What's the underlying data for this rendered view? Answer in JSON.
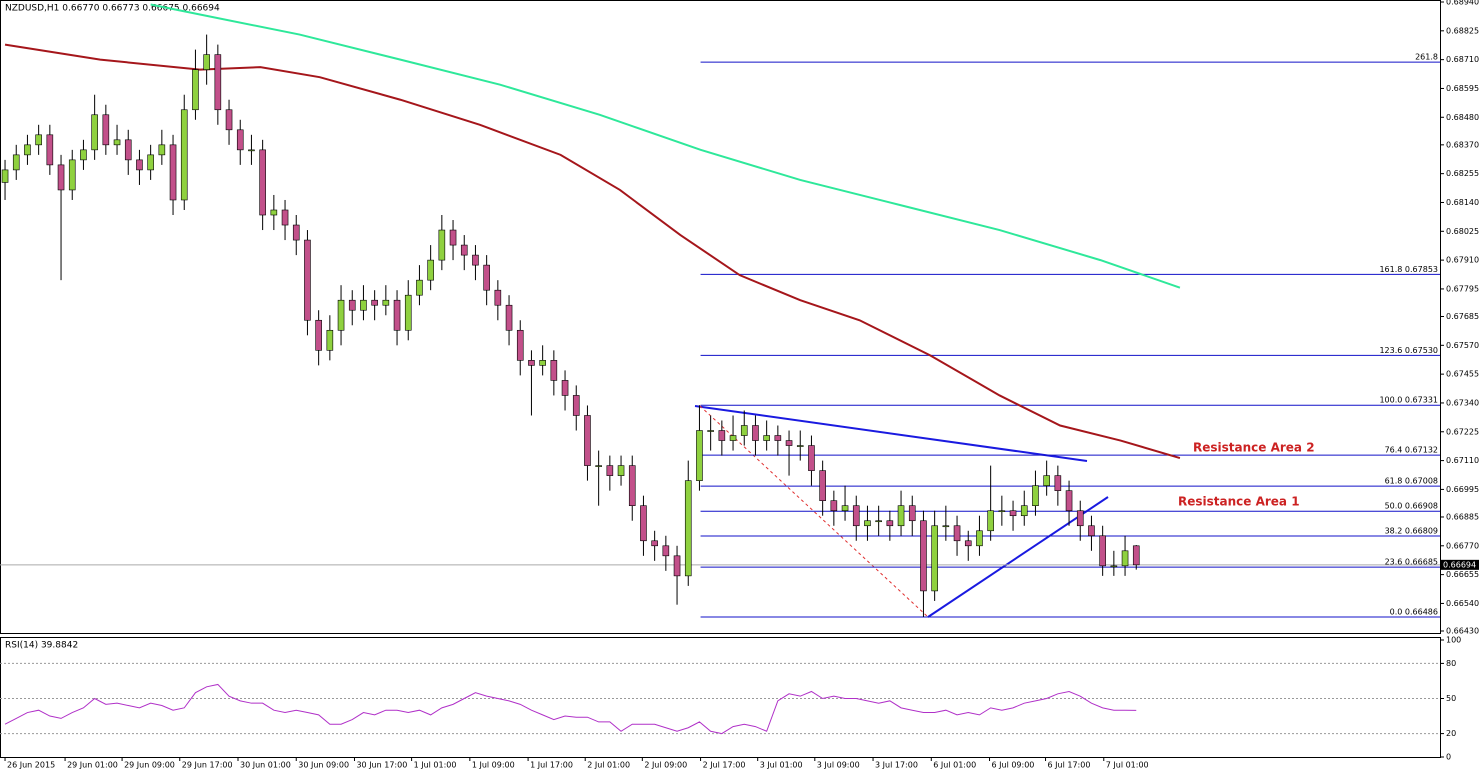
{
  "chart_data": {
    "type": "candlestick",
    "title": "NZDUSD,H1  0.66770 0.66773 0.66675 0.66694",
    "bull_color": "#8fd13f",
    "bear_color": "#c2508a",
    "xlim": [
      -0.45,
      128.12
    ],
    "ylim": [
      0.6643,
      0.6894
    ],
    "yticks": [
      {
        "value": 0.6894,
        "label": "0.68940"
      },
      {
        "value": 0.68825,
        "label": "0.68825"
      },
      {
        "value": 0.6871,
        "label": "0.68710"
      },
      {
        "value": 0.68595,
        "label": "0.68595"
      },
      {
        "value": 0.6848,
        "label": "0.68480"
      },
      {
        "value": 0.6837,
        "label": "0.68370"
      },
      0.68255,
      {
        "value": 0.6814,
        "label": "0.68140"
      },
      0.68025,
      {
        "value": 0.6791,
        "label": "0.67910"
      },
      0.67795,
      0.67685,
      {
        "value": 0.6757,
        "label": "0.67570"
      },
      0.67455,
      {
        "value": 0.6734,
        "label": "0.67340"
      },
      0.67225,
      {
        "value": 0.6711,
        "label": "0.67110"
      },
      0.66995,
      0.66885,
      {
        "value": 0.6677,
        "label": "0.66770"
      },
      0.66655,
      {
        "value": 0.6654,
        "label": "0.66540"
      },
      {
        "value": 0.6643,
        "label": "0.66430"
      }
    ],
    "xticks": [
      {
        "value": 0,
        "label": "26 Jun 2015"
      },
      {
        "value": 5.36,
        "label": "29 Jun 01:00"
      },
      {
        "value": 10.45,
        "label": "29 Jun 09:00"
      },
      {
        "value": 15.6,
        "label": "29 Jun 17:00"
      },
      {
        "value": 20.8,
        "label": "30 Jun 01:00"
      },
      {
        "value": 26.0,
        "label": "30 Jun 09:00"
      },
      {
        "value": 31.2,
        "label": "30 Jun 17:00"
      },
      {
        "value": 36.3,
        "label": "1 Jul 01:00"
      },
      {
        "value": 41.5,
        "label": "1 Jul 09:00"
      },
      {
        "value": 46.7,
        "label": "1 Jul 17:00"
      },
      {
        "value": 51.8,
        "label": "2 Jul 01:00"
      },
      {
        "value": 56.9,
        "label": "2 Jul 09:00"
      },
      {
        "value": 62.1,
        "label": "2 Jul 17:00"
      },
      {
        "value": 67.2,
        "label": "3 Jul 01:00"
      },
      {
        "value": 72.3,
        "label": "3 Jul 09:00"
      },
      {
        "value": 77.5,
        "label": "3 Jul 17:00"
      },
      {
        "value": 82.7,
        "label": "6 Jul 01:00"
      },
      {
        "value": 87.9,
        "label": "6 Jul 09:00"
      },
      {
        "value": 92.9,
        "label": "6 Jul 17:00"
      },
      {
        "value": 98.1,
        "label": "7 Jul 01:00"
      }
    ],
    "candles": [
      [
        0.6822,
        0.6831,
        0.6815,
        0.6827
      ],
      [
        0.6827,
        0.6837,
        0.6823,
        0.6833
      ],
      [
        0.6833,
        0.6841,
        0.6829,
        0.6837
      ],
      [
        0.6837,
        0.6845,
        0.6833,
        0.6841
      ],
      [
        0.6841,
        0.6845,
        0.6825,
        0.6829
      ],
      [
        0.6829,
        0.6833,
        0.6783,
        0.6819
      ],
      [
        0.6819,
        0.6835,
        0.6815,
        0.6831
      ],
      [
        0.6831,
        0.6839,
        0.6827,
        0.6835
      ],
      [
        0.6835,
        0.6857,
        0.6831,
        0.6849
      ],
      [
        0.6849,
        0.6853,
        0.6833,
        0.6837
      ],
      [
        0.6837,
        0.6845,
        0.6833,
        0.6839
      ],
      [
        0.6839,
        0.6843,
        0.6825,
        0.6831
      ],
      [
        0.6831,
        0.6835,
        0.6821,
        0.6827
      ],
      [
        0.6827,
        0.6837,
        0.6823,
        0.6833
      ],
      [
        0.6833,
        0.6843,
        0.6829,
        0.6837
      ],
      [
        0.6837,
        0.6841,
        0.6809,
        0.6815
      ],
      [
        0.6815,
        0.6857,
        0.6811,
        0.6851
      ],
      [
        0.6851,
        0.6875,
        0.6847,
        0.6867
      ],
      [
        0.6867,
        0.6881,
        0.6861,
        0.6873
      ],
      [
        0.6873,
        0.6877,
        0.6845,
        0.6851
      ],
      [
        0.6851,
        0.6855,
        0.6837,
        0.6843
      ],
      [
        0.6843,
        0.6847,
        0.6829,
        0.6835
      ],
      [
        0.6835,
        0.6841,
        0.6829,
        0.6835
      ],
      [
        0.6835,
        0.6839,
        0.6803,
        0.6809
      ],
      [
        0.6809,
        0.6817,
        0.6803,
        0.6811
      ],
      [
        0.6811,
        0.6815,
        0.6799,
        0.6805
      ],
      [
        0.6805,
        0.6809,
        0.6793,
        0.6799
      ],
      [
        0.6799,
        0.6803,
        0.6761,
        0.6767
      ],
      [
        0.6767,
        0.6771,
        0.6749,
        0.6755
      ],
      [
        0.6755,
        0.6769,
        0.6751,
        0.6763
      ],
      [
        0.6763,
        0.6781,
        0.6757,
        0.6775
      ],
      [
        0.6775,
        0.6779,
        0.6765,
        0.6771
      ],
      [
        0.6771,
        0.6781,
        0.6767,
        0.6775
      ],
      [
        0.6775,
        0.6779,
        0.6767,
        0.6773
      ],
      [
        0.6773,
        0.6781,
        0.6769,
        0.6775
      ],
      [
        0.6775,
        0.6779,
        0.6757,
        0.6763
      ],
      [
        0.6763,
        0.6783,
        0.6759,
        0.6777
      ],
      [
        0.6777,
        0.6789,
        0.6773,
        0.6783
      ],
      [
        0.6783,
        0.6797,
        0.6779,
        0.6791
      ],
      [
        0.6791,
        0.6809,
        0.6787,
        0.6803
      ],
      [
        0.6803,
        0.6807,
        0.6791,
        0.6797
      ],
      [
        0.6797,
        0.6801,
        0.6787,
        0.6793
      ],
      [
        0.6793,
        0.6797,
        0.6783,
        0.6789
      ],
      [
        0.6789,
        0.6793,
        0.6773,
        0.6779
      ],
      [
        0.6779,
        0.6783,
        0.6767,
        0.6773
      ],
      [
        0.6773,
        0.6777,
        0.6757,
        0.6763
      ],
      [
        0.6763,
        0.6767,
        0.6745,
        0.6751
      ],
      [
        0.6751,
        0.6755,
        0.6729,
        0.6749
      ],
      [
        0.6749,
        0.6757,
        0.6745,
        0.6751
      ],
      [
        0.6751,
        0.6755,
        0.6737,
        0.6743
      ],
      [
        0.6743,
        0.6747,
        0.6731,
        0.6737
      ],
      [
        0.6737,
        0.6741,
        0.6723,
        0.6729
      ],
      [
        0.6729,
        0.6733,
        0.6703,
        0.6709
      ],
      [
        0.6709,
        0.6715,
        0.6693,
        0.6709
      ],
      [
        0.6709,
        0.6713,
        0.6699,
        0.6705
      ],
      [
        0.6705,
        0.6713,
        0.6701,
        0.6709
      ],
      [
        0.6709,
        0.6713,
        0.6687,
        0.6693
      ],
      [
        0.6693,
        0.6697,
        0.6673,
        0.6679
      ],
      [
        0.6679,
        0.6683,
        0.6671,
        0.6677
      ],
      [
        0.6677,
        0.6681,
        0.6667,
        0.6673
      ],
      [
        0.6673,
        0.6677,
        0.66535,
        0.6665
      ],
      [
        0.6665,
        0.6711,
        0.6661,
        0.6703
      ],
      [
        0.6703,
        0.67331,
        0.6699,
        0.6723
      ],
      [
        0.6723,
        0.6729,
        0.6715,
        0.6723
      ],
      [
        0.6723,
        0.6727,
        0.6713,
        0.6719
      ],
      [
        0.6719,
        0.6729,
        0.6715,
        0.6721
      ],
      [
        0.6721,
        0.6731,
        0.6717,
        0.6725
      ],
      [
        0.6725,
        0.6729,
        0.6713,
        0.6719
      ],
      [
        0.6719,
        0.6727,
        0.6715,
        0.6721
      ],
      [
        0.6721,
        0.6725,
        0.6713,
        0.6719
      ],
      [
        0.6719,
        0.6723,
        0.6705,
        0.6717
      ],
      [
        0.6717,
        0.6723,
        0.6711,
        0.6717
      ],
      [
        0.6717,
        0.6721,
        0.6701,
        0.6707
      ],
      [
        0.6707,
        0.6711,
        0.6689,
        0.6695
      ],
      [
        0.6695,
        0.6699,
        0.6685,
        0.6691
      ],
      [
        0.6691,
        0.6701,
        0.6687,
        0.6693
      ],
      [
        0.6693,
        0.6697,
        0.6679,
        0.6685
      ],
      [
        0.6685,
        0.6693,
        0.6679,
        0.6687
      ],
      [
        0.6687,
        0.6693,
        0.6681,
        0.6687
      ],
      [
        0.6687,
        0.6691,
        0.6679,
        0.6685
      ],
      [
        0.6685,
        0.6699,
        0.6681,
        0.6693
      ],
      [
        0.6693,
        0.6697,
        0.6681,
        0.6687
      ],
      [
        0.6687,
        0.6691,
        0.66486,
        0.6659
      ],
      [
        0.6659,
        0.6691,
        0.6655,
        0.6685
      ],
      [
        0.6685,
        0.6693,
        0.6679,
        0.6685
      ],
      [
        0.6685,
        0.6689,
        0.6673,
        0.6679
      ],
      [
        0.6679,
        0.6683,
        0.6671,
        0.6677
      ],
      [
        0.6677,
        0.6689,
        0.6673,
        0.6683
      ],
      [
        0.6683,
        0.6709,
        0.6679,
        0.6691
      ],
      [
        0.6691,
        0.6697,
        0.6685,
        0.6691
      ],
      [
        0.6691,
        0.6695,
        0.6683,
        0.6689
      ],
      [
        0.6689,
        0.6699,
        0.6685,
        0.6693
      ],
      [
        0.6693,
        0.6707,
        0.6689,
        0.6701
      ],
      [
        0.6701,
        0.6711,
        0.6697,
        0.6705
      ],
      [
        0.6705,
        0.6709,
        0.6693,
        0.6699
      ],
      [
        0.6699,
        0.6703,
        0.6685,
        0.6691
      ],
      [
        0.6691,
        0.6695,
        0.6679,
        0.6685
      ],
      [
        0.6685,
        0.6689,
        0.6675,
        0.6681
      ],
      [
        0.6681,
        0.6685,
        0.6665,
        0.6669
      ],
      [
        0.6669,
        0.6675,
        0.6665,
        0.6669
      ],
      [
        0.6669,
        0.6681,
        0.6665,
        0.6675
      ],
      [
        0.6677,
        0.66773,
        0.66675,
        0.66694
      ]
    ],
    "moving_averages": [
      {
        "color": "#a5161b",
        "x": [
          0,
          8.5,
          17.4,
          22.8,
          28.1,
          35.3,
          42.4,
          49.6,
          54.9,
          60.3,
          65.6,
          71,
          76.3,
          82.6,
          88.8,
          94.2,
          99.6,
          104.9
        ],
        "values": [
          0.6877,
          0.6871,
          0.6867,
          0.6868,
          0.6864,
          0.6855,
          0.6845,
          0.6833,
          0.6819,
          0.6801,
          0.6785,
          0.6775,
          0.6767,
          0.6753,
          0.6737,
          0.6725,
          0.6719,
          0.6712
        ]
      },
      {
        "color": "#2ee89a",
        "x": [
          13,
          17.4,
          26.3,
          35.3,
          44.2,
          53.1,
          62.1,
          71,
          79.9,
          88.8,
          97.8,
          104.9
        ],
        "values": [
          0.6893,
          0.6889,
          0.6881,
          0.6871,
          0.6861,
          0.6849,
          0.6835,
          0.6823,
          0.6813,
          0.6803,
          0.6791,
          0.678
        ]
      }
    ],
    "fib_start": 62.1,
    "fib_color": "#1010c8",
    "fib_levels": [
      {
        "value": 0.687,
        "label": "261.8"
      },
      {
        "value": 0.67853,
        "label": "161.8  0.67853"
      },
      {
        "value": 0.6753,
        "label": "123.6  0.67530"
      },
      {
        "value": 0.67331,
        "label": "100.0  0.67331"
      },
      {
        "value": 0.67132,
        "label": "76.4  0.67132"
      },
      {
        "value": 0.67008,
        "label": "61.8  0.67008"
      },
      {
        "value": 0.66908,
        "label": "50.0  0.66908"
      },
      {
        "value": 0.66809,
        "label": "38.2  0.66809"
      },
      {
        "value": 0.66685,
        "label": "23.6  0.66685"
      },
      {
        "value": 0.66486,
        "label": "0.0  0.66486"
      }
    ],
    "last_price": 0.66694,
    "annotations": [
      "Resistance Area 2",
      "Resistance Area 1"
    ],
    "rsi": {
      "title": "RSI(14) 39.8842",
      "color": "#b030c8",
      "ylim": [
        0,
        100
      ],
      "yticks": [
        100,
        80,
        50,
        20,
        0
      ],
      "levels": [
        20,
        50,
        80
      ],
      "values": [
        28,
        33,
        38,
        40,
        35,
        33,
        38,
        42,
        50,
        45,
        46,
        44,
        42,
        46,
        44,
        40,
        42,
        55,
        60,
        62,
        52,
        48,
        46,
        46,
        40,
        38,
        40,
        38,
        36,
        28,
        28,
        32,
        38,
        36,
        40,
        40,
        38,
        40,
        36,
        42,
        45,
        50,
        55,
        52,
        50,
        48,
        45,
        40,
        36,
        32,
        35,
        34,
        34,
        30,
        30,
        22,
        28,
        28,
        28,
        25,
        22,
        25,
        30,
        22,
        20,
        26,
        28,
        26,
        22,
        48,
        54,
        52,
        56,
        50,
        52,
        50,
        50,
        48,
        46,
        48,
        42,
        40,
        38,
        38,
        40,
        36,
        38,
        36,
        42,
        40,
        42,
        46,
        48,
        50,
        54,
        56,
        52,
        46,
        42,
        40,
        40,
        39.8842
      ]
    }
  }
}
